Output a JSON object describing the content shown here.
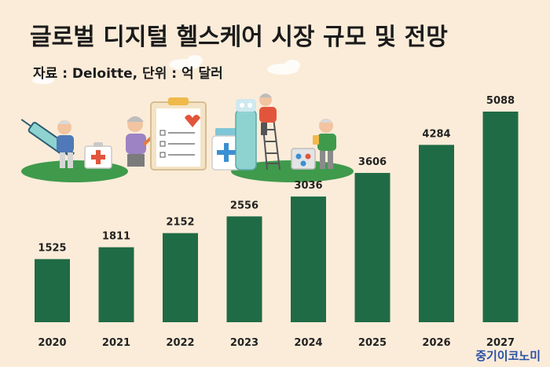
{
  "title": "글로벌 디지털 헬스케어 시장 규모 및 전망",
  "source": "자료 : Deloitte, 단위 : 억 달러",
  "brand": "중기이코노미",
  "colors": {
    "background": "#fbecd9",
    "bar": "#1f6b45",
    "brand": "#2a4fa8",
    "hill": "#3f9a4c"
  },
  "chart_data": {
    "type": "bar",
    "title": "글로벌 디지털 헬스케어 시장 규모 및 전망",
    "xlabel": "",
    "ylabel": "억 달러",
    "categories": [
      "2020",
      "2021",
      "2022",
      "2023",
      "2024",
      "2025",
      "2026",
      "2027"
    ],
    "values": [
      1525,
      1811,
      2152,
      2556,
      3036,
      3606,
      4284,
      5088
    ],
    "ylim": [
      0,
      5088
    ],
    "grid": false,
    "legend": "none"
  }
}
